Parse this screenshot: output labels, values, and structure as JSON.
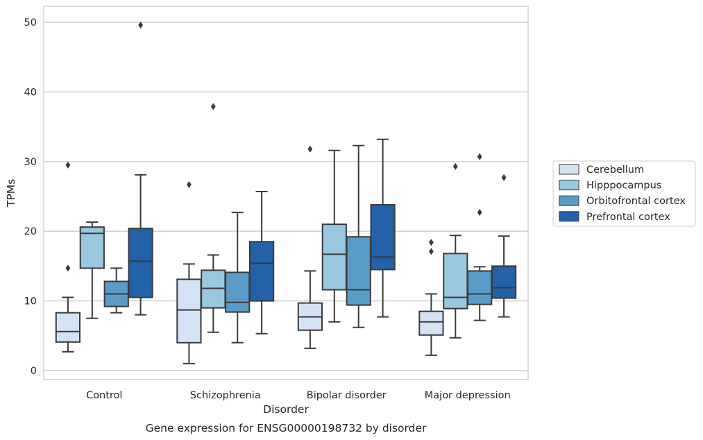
{
  "chart_data": {
    "type": "box",
    "caption": "Gene expression for ENSG00000198732 by disorder",
    "xlabel": "Disorder",
    "ylabel": "TPMs",
    "ylim": [
      -1.3,
      52.3
    ],
    "yticks": [
      0,
      10,
      20,
      30,
      40,
      50
    ],
    "grid": "y",
    "legend_position": "right",
    "categories": [
      "Control",
      "Schizophrenia",
      "Bipolar disorder",
      "Major depression"
    ],
    "series": [
      {
        "name": "Cerebellum",
        "color": "#d4e3f3",
        "boxes": [
          {
            "whisker_low": 2.7,
            "q1": 4.1,
            "median": 5.6,
            "q3": 8.3,
            "whisker_high": 10.5,
            "outliers": [
              14.7,
              29.5
            ]
          },
          {
            "whisker_low": 1.0,
            "q1": 4.0,
            "median": 8.7,
            "q3": 13.1,
            "whisker_high": 15.3,
            "outliers": [
              26.7
            ]
          },
          {
            "whisker_low": 3.2,
            "q1": 5.8,
            "median": 7.7,
            "q3": 9.7,
            "whisker_high": 14.3,
            "outliers": [
              31.8
            ]
          },
          {
            "whisker_low": 2.2,
            "q1": 5.1,
            "median": 7.0,
            "q3": 8.5,
            "whisker_high": 11.0,
            "outliers": [
              17.1,
              18.4
            ]
          }
        ]
      },
      {
        "name": "Hipppocampus",
        "color": "#9ac8e0",
        "boxes": [
          {
            "whisker_low": 7.5,
            "q1": 14.7,
            "median": 19.7,
            "q3": 20.6,
            "whisker_high": 21.3,
            "outliers": []
          },
          {
            "whisker_low": 5.5,
            "q1": 9.0,
            "median": 11.8,
            "q3": 14.4,
            "whisker_high": 16.6,
            "outliers": [
              37.9
            ]
          },
          {
            "whisker_low": 7.0,
            "q1": 11.6,
            "median": 16.7,
            "q3": 21.0,
            "whisker_high": 31.6,
            "outliers": []
          },
          {
            "whisker_low": 4.7,
            "q1": 8.9,
            "median": 10.5,
            "q3": 16.8,
            "whisker_high": 19.4,
            "outliers": [
              29.3
            ]
          }
        ]
      },
      {
        "name": "Orbitofrontal cortex",
        "color": "#5a9cc8",
        "boxes": [
          {
            "whisker_low": 8.3,
            "q1": 9.2,
            "median": 11.0,
            "q3": 12.8,
            "whisker_high": 14.7,
            "outliers": []
          },
          {
            "whisker_low": 4.0,
            "q1": 8.4,
            "median": 9.8,
            "q3": 14.1,
            "whisker_high": 22.7,
            "outliers": []
          },
          {
            "whisker_low": 6.2,
            "q1": 9.4,
            "median": 11.6,
            "q3": 19.2,
            "whisker_high": 32.3,
            "outliers": []
          },
          {
            "whisker_low": 7.2,
            "q1": 9.5,
            "median": 11.0,
            "q3": 14.3,
            "whisker_high": 14.9,
            "outliers": [
              22.7,
              30.7
            ]
          }
        ]
      },
      {
        "name": "Prefrontal cortex",
        "color": "#2362a9",
        "boxes": [
          {
            "whisker_low": 8.0,
            "q1": 10.5,
            "median": 15.7,
            "q3": 20.4,
            "whisker_high": 28.1,
            "outliers": [
              49.6
            ]
          },
          {
            "whisker_low": 5.3,
            "q1": 10.0,
            "median": 15.4,
            "q3": 18.5,
            "whisker_high": 25.7,
            "outliers": []
          },
          {
            "whisker_low": 7.7,
            "q1": 14.5,
            "median": 16.3,
            "q3": 23.8,
            "whisker_high": 33.2,
            "outliers": []
          },
          {
            "whisker_low": 7.7,
            "q1": 10.4,
            "median": 11.9,
            "q3": 15.0,
            "whisker_high": 19.3,
            "outliers": [
              27.7
            ]
          }
        ]
      }
    ]
  }
}
